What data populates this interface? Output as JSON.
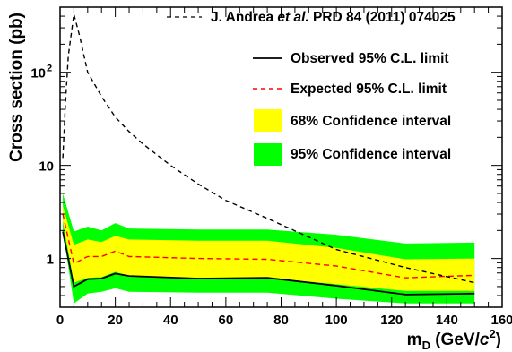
{
  "chart_data": {
    "type": "line",
    "xlabel": {
      "main": "m",
      "sub": "D",
      "open": " (GeV/",
      "c": "c",
      "exp": "2",
      "close": ")"
    },
    "ylabel": "Cross section (pb)",
    "xlim": [
      0,
      160
    ],
    "ylim": [
      0.3,
      500
    ],
    "yscale": "log",
    "x_ticks": [
      0,
      20,
      40,
      60,
      80,
      100,
      120,
      140,
      160
    ],
    "y_ticks": [
      {
        "value": 1,
        "label": "1"
      },
      {
        "value": 10,
        "label": "10"
      },
      {
        "value": 100,
        "label": "10",
        "exp": "2"
      }
    ],
    "grid": false,
    "legend_position": "top-right",
    "series": [
      {
        "name": "Observed 95% C.L. limit",
        "style": "solid",
        "color": "#000000",
        "x": [
          1,
          5,
          10,
          15,
          20,
          25,
          50,
          75,
          100,
          125,
          150
        ],
        "y": [
          1.95,
          0.5,
          0.6,
          0.61,
          0.69,
          0.65,
          0.61,
          0.62,
          0.51,
          0.41,
          0.42
        ]
      },
      {
        "name": "Expected 95% C.L. limit",
        "style": "dashed",
        "color": "#ff0000",
        "x": [
          1,
          5,
          10,
          15,
          20,
          25,
          50,
          75,
          100,
          125,
          150
        ],
        "y": [
          3.0,
          0.88,
          1.05,
          1.05,
          1.2,
          1.05,
          1.0,
          0.98,
          0.83,
          0.62,
          0.66
        ]
      },
      {
        "name": "J. Andrea et al. PRD 84 (2011) 074025",
        "name_parts": {
          "a": "J. Andrea ",
          "b": "et al.",
          "c": " PRD 84 (2011) 074025"
        },
        "style": "dashed",
        "color": "#000000",
        "x": [
          1,
          2,
          3,
          5,
          7,
          10,
          15,
          20,
          25,
          30,
          40,
          50,
          60,
          75,
          100,
          125,
          150
        ],
        "y": [
          12,
          50,
          150,
          420,
          250,
          100,
          55,
          33,
          23,
          17,
          10,
          6.3,
          4.2,
          2.7,
          1.25,
          0.8,
          0.55
        ]
      }
    ],
    "bands": [
      {
        "name": "95% Confidence interval",
        "color": "#00ff00",
        "x": [
          1,
          5,
          10,
          15,
          20,
          25,
          50,
          75,
          100,
          125,
          150
        ],
        "low": [
          2.0,
          0.33,
          0.42,
          0.44,
          0.48,
          0.44,
          0.43,
          0.43,
          0.37,
          0.33,
          0.33
        ],
        "high": [
          5.0,
          1.95,
          2.2,
          2.0,
          2.4,
          2.1,
          2.05,
          2.05,
          1.8,
          1.45,
          1.48
        ]
      },
      {
        "name": "68% Confidence interval",
        "color": "#ffff00",
        "x": [
          1,
          5,
          10,
          15,
          20,
          25,
          50,
          75,
          100,
          125,
          150
        ],
        "low": [
          2.5,
          0.55,
          0.62,
          0.63,
          0.72,
          0.65,
          0.62,
          0.62,
          0.53,
          0.45,
          0.45
        ],
        "high": [
          3.7,
          1.4,
          1.6,
          1.5,
          1.75,
          1.6,
          1.55,
          1.55,
          1.3,
          0.98,
          1.0
        ]
      }
    ]
  }
}
